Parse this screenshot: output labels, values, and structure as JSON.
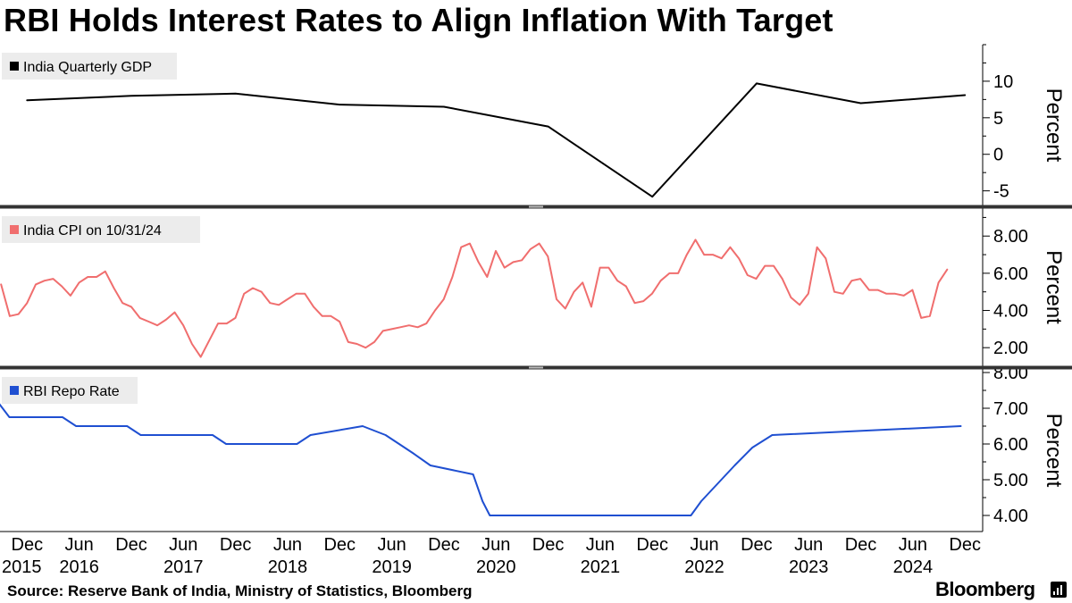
{
  "title": "RBI Holds Interest Rates to Align Inflation With Target",
  "source": "Source: Reserve Bank of India, Ministry of Statistics, Bloomberg",
  "brand": "Bloomberg",
  "colors": {
    "gdp": "#000000",
    "cpi": "#f06e6e",
    "repo": "#1f4fd1",
    "legend_bg": "#ececec",
    "divider": "#333333"
  },
  "chart_data": [
    {
      "type": "line",
      "title": "India Quarterly GDP",
      "legend": "India Quarterly GDP",
      "ylabel": "Percent",
      "ylim": [
        -7,
        15
      ],
      "yticks": [
        -5,
        0,
        5,
        10
      ],
      "ytick_labels": [
        "-5",
        "0",
        "5",
        "10"
      ],
      "x": [
        2015.96,
        2016.96,
        2017.96,
        2018.96,
        2019.96,
        2020.96,
        2021.96,
        2022.96,
        2023.96,
        2024.96
      ],
      "values": [
        7.4,
        8.0,
        8.3,
        6.8,
        6.5,
        3.8,
        -5.8,
        9.7,
        7.0,
        8.1
      ]
    },
    {
      "type": "line",
      "title": "India CPI on 10/31/24",
      "legend": "India CPI on 10/31/24",
      "ylabel": "Percent",
      "ylim": [
        1.0,
        9.5
      ],
      "yticks": [
        2,
        4,
        6,
        8
      ],
      "ytick_labels": [
        "2.00",
        "4.00",
        "6.00",
        "8.00"
      ],
      "x_start": 2015.71,
      "x_step": 0.0833,
      "values": [
        5.4,
        3.7,
        3.8,
        4.4,
        5.4,
        5.6,
        5.7,
        5.3,
        4.8,
        5.5,
        5.8,
        5.8,
        6.1,
        5.2,
        4.4,
        4.2,
        3.6,
        3.4,
        3.2,
        3.5,
        3.9,
        3.2,
        2.2,
        1.5,
        2.4,
        3.3,
        3.3,
        3.6,
        4.9,
        5.2,
        5.0,
        4.4,
        4.3,
        4.6,
        4.9,
        4.9,
        4.2,
        3.7,
        3.7,
        3.4,
        2.3,
        2.2,
        2.0,
        2.3,
        2.9,
        3.0,
        3.1,
        3.2,
        3.1,
        3.3,
        4.0,
        4.6,
        5.8,
        7.4,
        7.6,
        6.6,
        5.8,
        7.2,
        6.3,
        6.6,
        6.7,
        7.3,
        7.6,
        6.9,
        4.6,
        4.1,
        5.0,
        5.5,
        4.2,
        6.3,
        6.3,
        5.6,
        5.3,
        4.4,
        4.5,
        4.9,
        5.6,
        6.0,
        6.0,
        7.0,
        7.8,
        7.0,
        7.0,
        6.8,
        7.4,
        6.8,
        5.9,
        5.7,
        6.4,
        6.4,
        5.7,
        4.7,
        4.3,
        4.9,
        7.4,
        6.8,
        5.0,
        4.9,
        5.6,
        5.7,
        5.1,
        5.1,
        4.9,
        4.9,
        4.8,
        5.1,
        3.6,
        3.7,
        5.5,
        6.2
      ]
    },
    {
      "type": "line",
      "title": "RBI Repo Rate",
      "legend": "RBI Repo Rate",
      "ylabel": "Percent",
      "ylim": [
        3.55,
        8.1
      ],
      "yticks": [
        4,
        5,
        6,
        7,
        8
      ],
      "ytick_labels": [
        "4.00",
        "5.00",
        "6.00",
        "7.00",
        "8.00"
      ],
      "x": [
        2015.66,
        2015.79,
        2016.3,
        2016.43,
        2016.92,
        2017.05,
        2017.74,
        2017.87,
        2018.55,
        2018.68,
        2019.18,
        2019.4,
        2019.53,
        2019.66,
        2019.83,
        2020.24,
        2020.33,
        2020.4,
        2022.33,
        2022.43,
        2022.59,
        2022.75,
        2022.92,
        2023.11,
        2024.92
      ],
      "values": [
        7.25,
        6.75,
        6.75,
        6.5,
        6.5,
        6.25,
        6.25,
        6.0,
        6.0,
        6.25,
        6.5,
        6.25,
        6.0,
        5.75,
        5.4,
        5.15,
        4.4,
        4.0,
        4.0,
        4.4,
        4.9,
        5.4,
        5.9,
        6.25,
        6.5
      ]
    }
  ],
  "x_axis": {
    "xlim": [
      2015.7,
      2025.13
    ],
    "month_labels": [
      "Dec",
      "Jun",
      "Dec",
      "Jun",
      "Dec",
      "Jun",
      "Dec",
      "Jun",
      "Dec",
      "Jun",
      "Dec",
      "Jun",
      "Dec",
      "Jun",
      "Dec",
      "Jun",
      "Dec",
      "Jun",
      "Dec"
    ],
    "month_positions": [
      2015.96,
      2016.46,
      2016.96,
      2017.46,
      2017.96,
      2018.46,
      2018.96,
      2019.46,
      2019.96,
      2020.46,
      2020.96,
      2021.46,
      2021.96,
      2022.46,
      2022.96,
      2023.46,
      2023.96,
      2024.46,
      2024.96
    ],
    "year_labels": [
      "2015",
      "2016",
      "2017",
      "2018",
      "2019",
      "2020",
      "2021",
      "2022",
      "2023",
      "2024"
    ],
    "year_positions": [
      2015.8,
      2016.46,
      2017.46,
      2018.46,
      2019.46,
      2020.46,
      2021.46,
      2022.46,
      2023.46,
      2024.46
    ]
  }
}
